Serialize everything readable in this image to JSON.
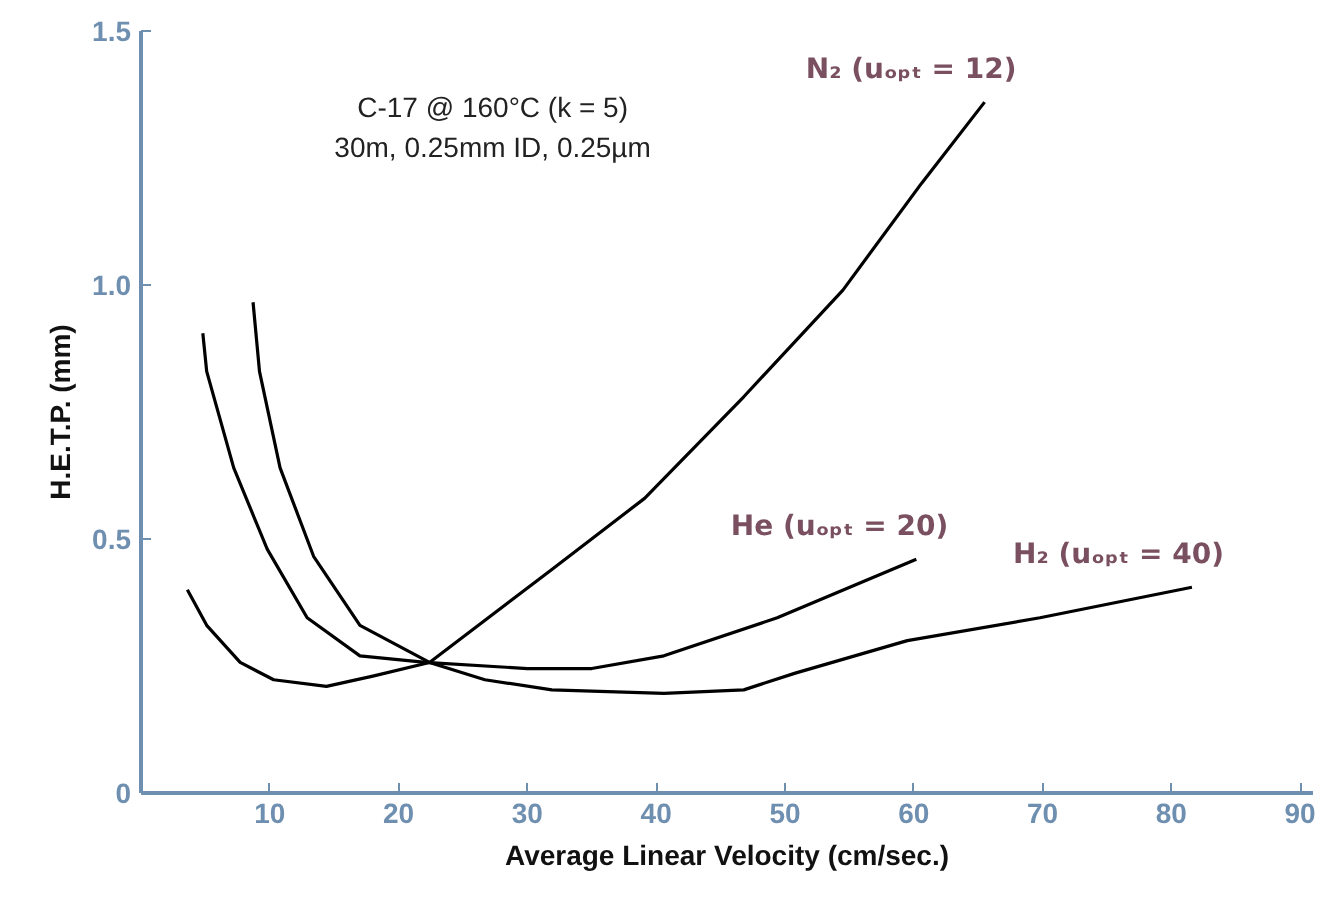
{
  "chart_data": {
    "type": "line",
    "xlabel": "Average Linear Velocity (cm/sec.)",
    "ylabel": "H.E.T.P. (mm)",
    "annotations": [
      "C-17 @ 160°C (k = 5)",
      "30m, 0.25mm ID, 0.25µm"
    ],
    "xlim": [
      0,
      91
    ],
    "ylim": [
      0,
      1.5
    ],
    "xticks": [
      10,
      20,
      30,
      40,
      50,
      60,
      70,
      80,
      90
    ],
    "yticks": [
      0,
      0.5,
      {
        "value": 1.0,
        "label": "1.0"
      },
      1.5
    ],
    "grid": false,
    "marker": "none",
    "line_style": "solid",
    "series": [
      {
        "name": "N₂ (uₒₚₜ = 12)",
        "color": "#000000",
        "x": [
          3.6,
          5.1,
          7.7,
          10.3,
          14.4,
          18,
          22.4,
          31.9,
          39.1,
          46.8,
          54.5,
          60.6,
          65.5
        ],
        "values": [
          0.4,
          0.33,
          0.257,
          0.223,
          0.21,
          0.23,
          0.257,
          0.44,
          0.58,
          0.78,
          0.99,
          1.2,
          1.36
        ]
      },
      {
        "name": "He (uₒₚₜ = 20)",
        "color": "#000000",
        "x": [
          4.8,
          5.1,
          7.2,
          9.8,
          12.9,
          17,
          22.1,
          30,
          35,
          40.6,
          49.4,
          60.2
        ],
        "values": [
          0.905,
          0.83,
          0.64,
          0.48,
          0.345,
          0.27,
          0.257,
          0.245,
          0.245,
          0.27,
          0.345,
          0.46
        ]
      },
      {
        "name": "H₂ (uₒₚₜ = 40)",
        "color": "#000000",
        "x": [
          8.7,
          9.2,
          10.8,
          13.4,
          17,
          22.4,
          26.7,
          31.9,
          40.6,
          46.8,
          50.8,
          59.5,
          69.8,
          81.6
        ],
        "values": [
          0.966,
          0.83,
          0.64,
          0.466,
          0.33,
          0.257,
          0.223,
          0.203,
          0.196,
          0.203,
          0.236,
          0.3,
          0.345,
          0.405
        ]
      }
    ]
  }
}
